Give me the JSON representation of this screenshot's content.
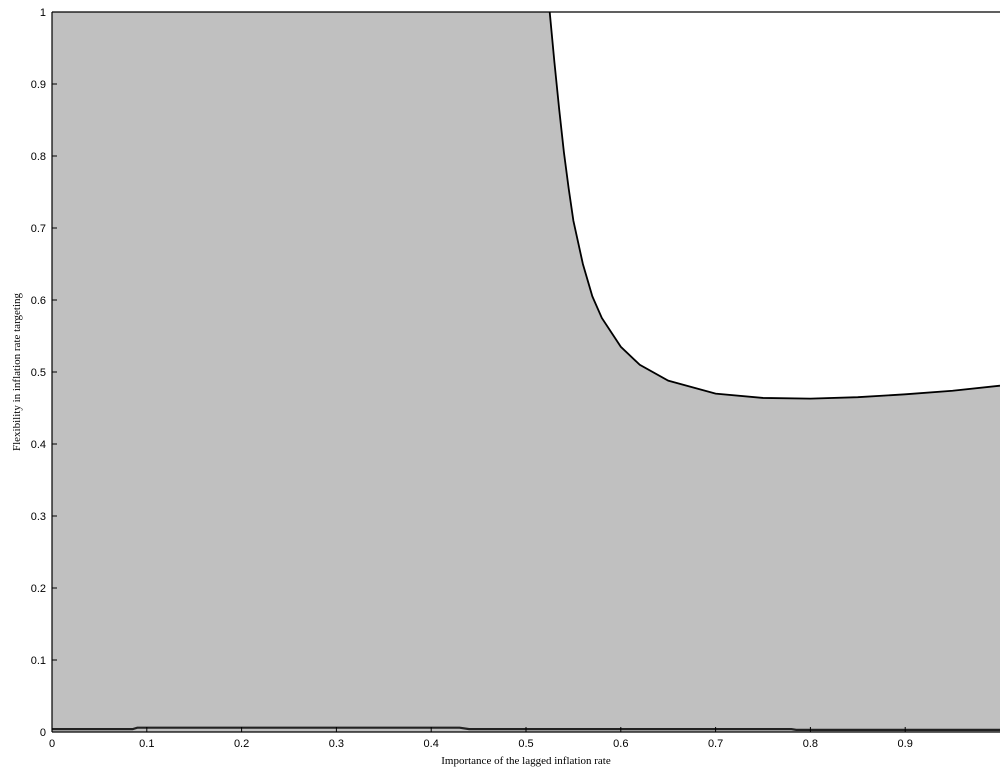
{
  "chart_data": {
    "type": "area",
    "title": "",
    "xlabel": "Importance of the lagged inflation rate",
    "ylabel": "Flexibility in inflation rate targeting",
    "xlim": [
      0,
      1
    ],
    "ylim": [
      0,
      1
    ],
    "x_ticks": [
      "0",
      "0.1",
      "0.2",
      "0.3",
      "0.4",
      "0.5",
      "0.6",
      "0.7",
      "0.8",
      "0.9"
    ],
    "y_ticks": [
      "0",
      "0.1",
      "0.2",
      "0.3",
      "0.4",
      "0.5",
      "0.6",
      "0.7",
      "0.8",
      "0.9",
      "1"
    ],
    "grid": false,
    "fill_color": "#c0c0c0",
    "line_color": "#000000",
    "boundary": {
      "x": [
        0.525,
        0.53,
        0.535,
        0.54,
        0.545,
        0.55,
        0.56,
        0.57,
        0.58,
        0.6,
        0.62,
        0.65,
        0.7,
        0.75,
        0.8,
        0.85,
        0.9,
        0.95,
        1.0
      ],
      "y": [
        1.0,
        0.93,
        0.865,
        0.805,
        0.755,
        0.71,
        0.65,
        0.605,
        0.575,
        0.535,
        0.51,
        0.488,
        0.47,
        0.464,
        0.463,
        0.465,
        0.469,
        0.474,
        0.481
      ]
    },
    "lower_line": {
      "x": [
        0,
        0.085,
        0.09,
        0.43,
        0.44,
        0.78,
        0.785,
        1.0
      ],
      "y": [
        0.004,
        0.004,
        0.006,
        0.006,
        0.004,
        0.004,
        0.003,
        0.003
      ]
    }
  }
}
